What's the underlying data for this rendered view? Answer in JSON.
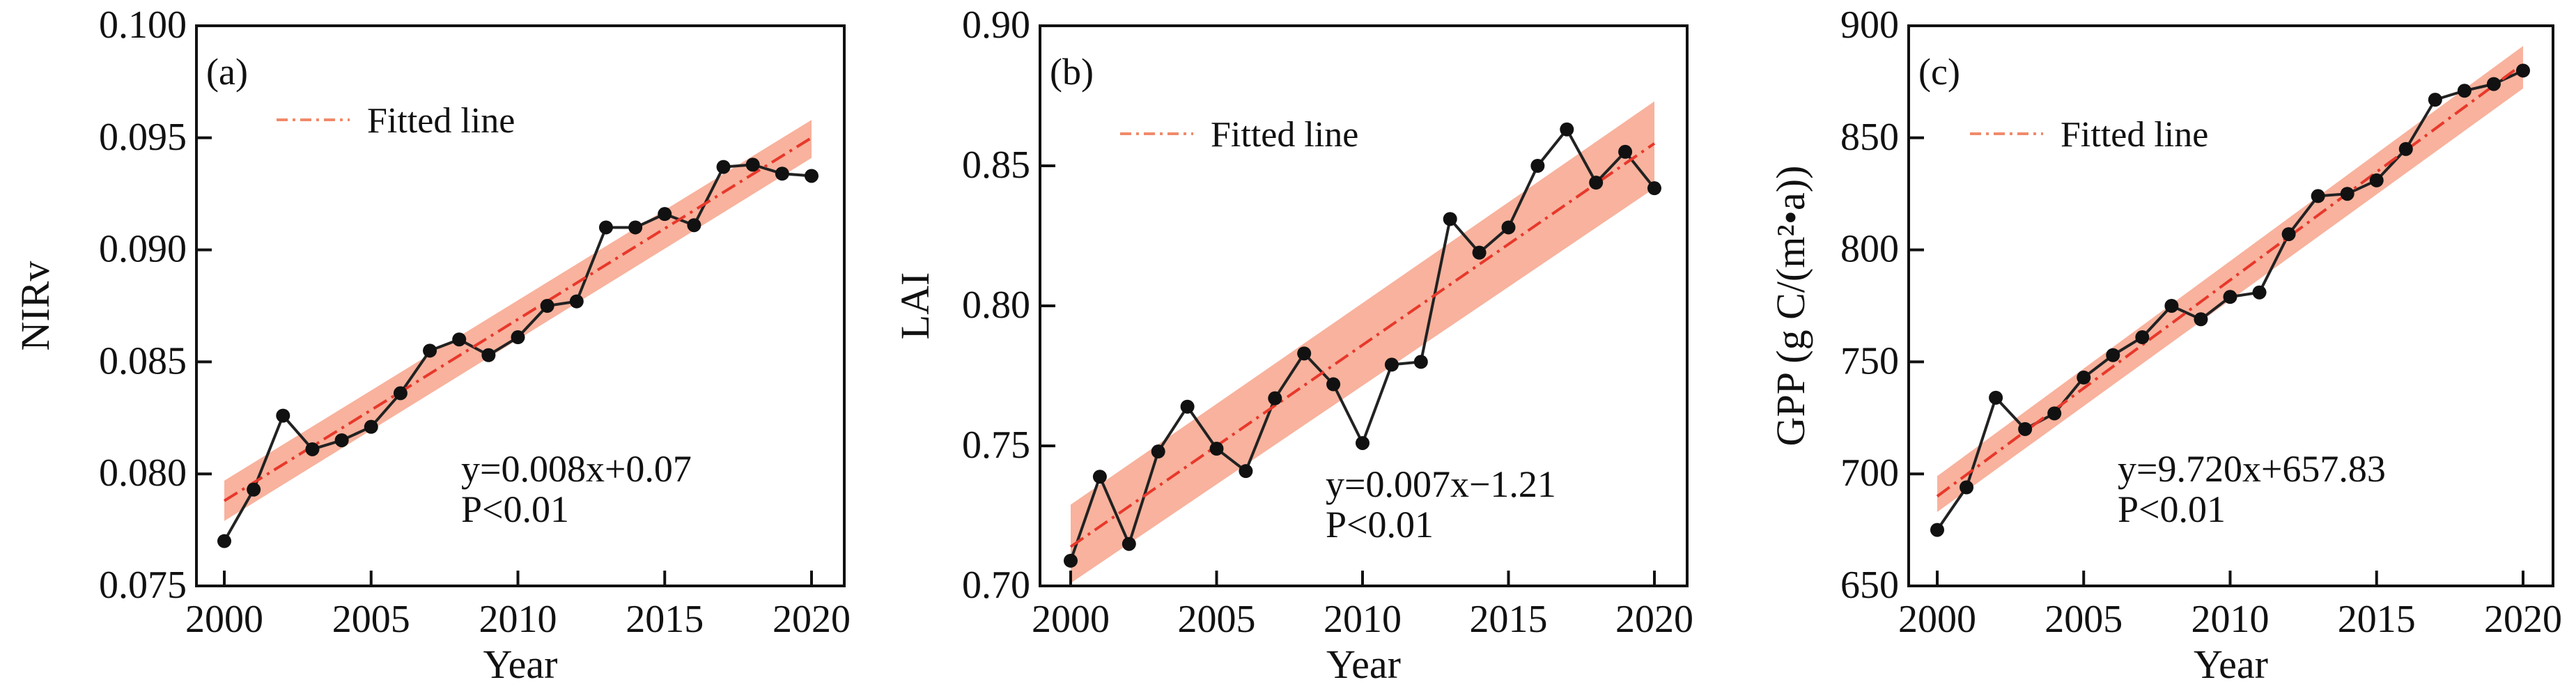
{
  "chart_data": [
    {
      "type": "line",
      "panel_label": "(a)",
      "xlabel": "Year",
      "ylabel": "NIRv",
      "xlim": [
        2000,
        2020
      ],
      "ylim": [
        0.075,
        0.1
      ],
      "xticks": [
        "2000",
        "2005",
        "2010",
        "2015",
        "2020"
      ],
      "yticks": [
        "0.075",
        "0.080",
        "0.085",
        "0.090",
        "0.095",
        "0.100"
      ],
      "legend": "Fitted line",
      "equation": "y=0.008x+0.07",
      "p_value": "P<0.01",
      "x": [
        2000,
        2001,
        2002,
        2003,
        2004,
        2005,
        2006,
        2007,
        2008,
        2009,
        2010,
        2011,
        2012,
        2013,
        2014,
        2015,
        2016,
        2017,
        2018,
        2019,
        2020
      ],
      "values": [
        0.077,
        0.0793,
        0.0826,
        0.0811,
        0.0815,
        0.0821,
        0.0836,
        0.0855,
        0.086,
        0.0853,
        0.0861,
        0.0875,
        0.0877,
        0.091,
        0.091,
        0.0916,
        0.0911,
        0.0937,
        0.0938,
        0.0934,
        0.0933
      ],
      "fit": [
        0.0788,
        0.095
      ],
      "band_start": [
        0.0779,
        0.0797
      ],
      "band_end": [
        0.0941,
        0.0958
      ]
    },
    {
      "type": "line",
      "panel_label": "(b)",
      "xlabel": "Year",
      "ylabel": "LAI",
      "xlim": [
        2000,
        2020
      ],
      "ylim": [
        0.7,
        0.9
      ],
      "xticks": [
        "2000",
        "2005",
        "2010",
        "2015",
        "2020"
      ],
      "yticks": [
        "0.70",
        "0.75",
        "0.80",
        "0.85",
        "0.90"
      ],
      "legend": "Fitted line",
      "equation": "y=0.007x−1.21",
      "p_value": "P<0.01",
      "x": [
        2000,
        2001,
        2002,
        2003,
        2004,
        2005,
        2006,
        2007,
        2008,
        2009,
        2010,
        2011,
        2012,
        2013,
        2014,
        2015,
        2016,
        2017,
        2018,
        2019,
        2020
      ],
      "values": [
        0.709,
        0.739,
        0.715,
        0.748,
        0.764,
        0.749,
        0.741,
        0.767,
        0.783,
        0.772,
        0.751,
        0.779,
        0.78,
        0.831,
        0.819,
        0.828,
        0.85,
        0.863,
        0.844,
        0.855,
        0.842
      ],
      "fit": [
        0.714,
        0.858
      ],
      "band_start": [
        0.701,
        0.729
      ],
      "band_end": [
        0.842,
        0.873
      ]
    },
    {
      "type": "line",
      "panel_label": "(c)",
      "xlabel": "Year",
      "ylabel": "GPP (g C/(m²•a))",
      "xlim": [
        2000,
        2020
      ],
      "ylim": [
        650,
        900
      ],
      "xticks": [
        "2000",
        "2005",
        "2010",
        "2015",
        "2020"
      ],
      "yticks": [
        "650",
        "700",
        "750",
        "800",
        "850",
        "900"
      ],
      "legend": "Fitted line",
      "equation": "y=9.720x+657.83",
      "p_value": "P<0.01",
      "x": [
        2000,
        2001,
        2002,
        2003,
        2004,
        2005,
        2006,
        2007,
        2008,
        2009,
        2010,
        2011,
        2012,
        2013,
        2014,
        2015,
        2016,
        2017,
        2018,
        2019,
        2020
      ],
      "values": [
        675,
        694,
        734,
        720,
        727,
        743,
        753,
        761,
        775,
        769,
        779,
        781,
        807,
        824,
        825,
        831,
        845,
        867,
        871,
        874,
        880
      ],
      "fit": [
        690,
        883
      ],
      "band_start": [
        683,
        699
      ],
      "band_end": [
        872,
        891
      ]
    }
  ],
  "colors": {
    "band": "#f7a58c",
    "fit": "#e8382b",
    "legend_line": "#f08a6a",
    "points": "#111111",
    "line": "#222222"
  }
}
